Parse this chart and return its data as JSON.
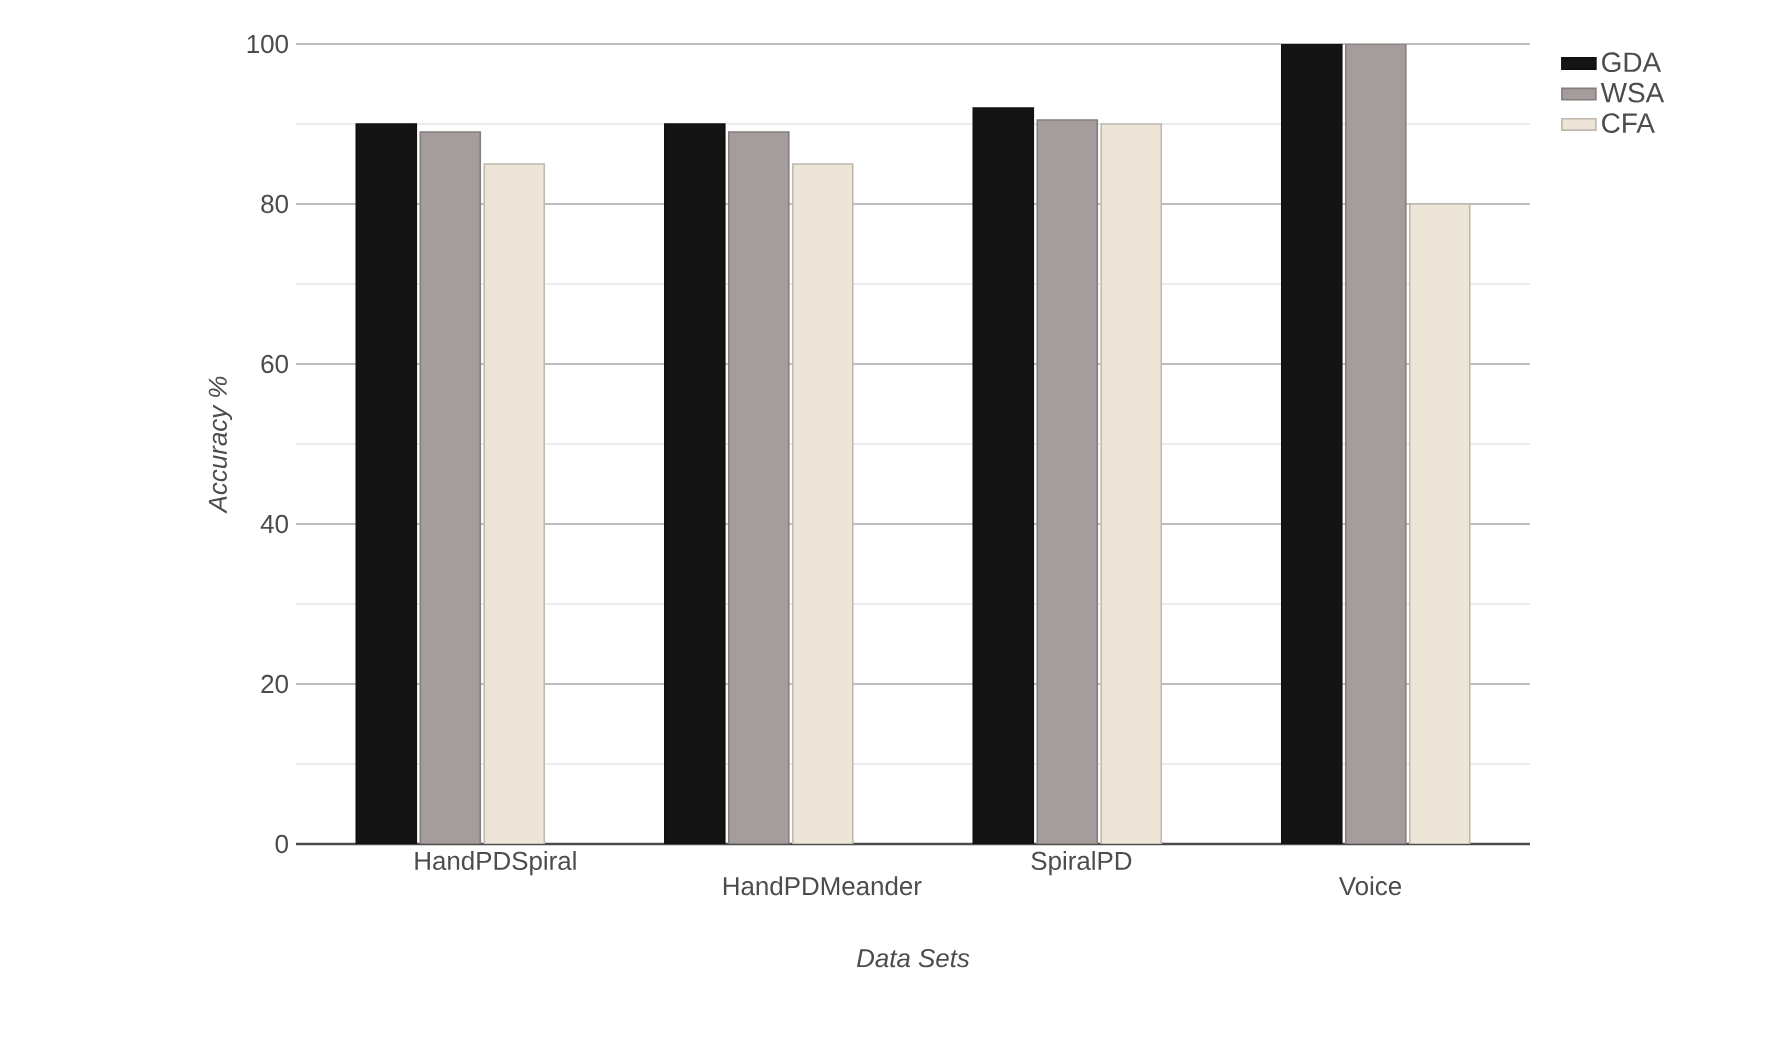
{
  "chart_data": {
    "type": "bar",
    "xlabel": "Data Sets",
    "ylabel": "Accuracy %",
    "categories": [
      "HandPDSpiral",
      "HandPDMeander",
      "SpiralPD",
      "Voice"
    ],
    "series": [
      {
        "name": "GDA",
        "color": "#141414",
        "values": [
          90,
          90,
          92,
          100
        ]
      },
      {
        "name": "WSA",
        "color": "#a59d9b",
        "values": [
          89,
          89,
          90.5,
          100
        ]
      },
      {
        "name": "CFA",
        "color": "#ede6d8",
        "values": [
          85,
          85,
          90,
          80
        ]
      }
    ],
    "ylim": [
      0,
      100
    ],
    "yticks": [
      0,
      20,
      40,
      60,
      80,
      100
    ],
    "grid": "y",
    "legend": "top right"
  }
}
